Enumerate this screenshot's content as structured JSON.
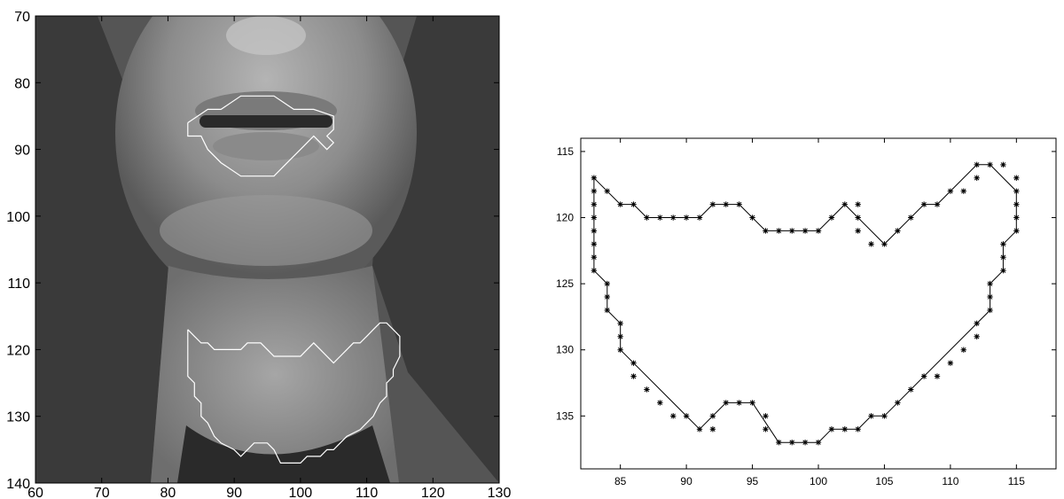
{
  "chart_data": [
    {
      "type": "image",
      "title": "",
      "xlabel": "",
      "ylabel": "",
      "xlim": [
        60,
        130
      ],
      "ylim": [
        70,
        140
      ],
      "y_reversed": true,
      "xticks": [
        60,
        70,
        80,
        90,
        100,
        110,
        120,
        130
      ],
      "yticks": [
        70,
        80,
        90,
        100,
        110,
        120,
        130,
        140
      ],
      "image_content": "grayscale face crop (mouth and neck) with white contour overlays",
      "overlay_color": "#ffffff",
      "contours": [
        {
          "region": "mouth",
          "points": [
            [
              83,
              86
            ],
            [
              86,
              84
            ],
            [
              88,
              84
            ],
            [
              91,
              82
            ],
            [
              96,
              82
            ],
            [
              99,
              84
            ],
            [
              102,
              84
            ],
            [
              105,
              85
            ],
            [
              105,
              87
            ],
            [
              104,
              88
            ],
            [
              105,
              89
            ],
            [
              104,
              90
            ],
            [
              102,
              88
            ],
            [
              100,
              90
            ],
            [
              98,
              92
            ],
            [
              96,
              94
            ],
            [
              91,
              94
            ],
            [
              88,
              92
            ],
            [
              86,
              90
            ],
            [
              85,
              88
            ],
            [
              83,
              88
            ],
            [
              83,
              86
            ]
          ]
        },
        {
          "region": "neck",
          "points": [
            [
              83,
              117
            ],
            [
              84,
              118
            ],
            [
              85,
              119
            ],
            [
              86,
              119
            ],
            [
              87,
              120
            ],
            [
              90,
              120
            ],
            [
              91,
              120
            ],
            [
              92,
              119
            ],
            [
              94,
              119
            ],
            [
              95,
              120
            ],
            [
              96,
              121
            ],
            [
              100,
              121
            ],
            [
              101,
              120
            ],
            [
              102,
              119
            ],
            [
              103,
              120
            ],
            [
              105,
              122
            ],
            [
              106,
              121
            ],
            [
              107,
              120
            ],
            [
              108,
              119
            ],
            [
              109,
              119
            ],
            [
              110,
              118
            ],
            [
              111,
              117
            ],
            [
              112,
              116
            ],
            [
              113,
              116
            ],
            [
              114,
              117
            ],
            [
              115,
              118
            ],
            [
              115,
              121
            ],
            [
              114,
              123
            ],
            [
              114,
              124
            ],
            [
              113,
              125
            ],
            [
              113,
              127
            ],
            [
              112,
              128
            ],
            [
              111,
              130
            ],
            [
              110,
              131
            ],
            [
              109,
              132
            ],
            [
              107,
              133
            ],
            [
              106,
              134
            ],
            [
              105,
              135
            ],
            [
              104,
              135
            ],
            [
              103,
              136
            ],
            [
              101,
              136
            ],
            [
              100,
              137
            ],
            [
              97,
              137
            ],
            [
              96,
              135
            ],
            [
              95,
              134
            ],
            [
              94,
              134
            ],
            [
              93,
              134
            ],
            [
              92,
              135
            ],
            [
              91,
              136
            ],
            [
              90,
              135
            ],
            [
              88,
              134
            ],
            [
              87,
              133
            ],
            [
              86,
              131
            ],
            [
              85,
              130
            ],
            [
              85,
              128
            ],
            [
              84,
              127
            ],
            [
              84,
              125
            ],
            [
              83,
              124
            ],
            [
              83,
              117
            ]
          ]
        }
      ]
    },
    {
      "type": "scatter",
      "title": "",
      "xlabel": "",
      "ylabel": "",
      "xlim": [
        82,
        118
      ],
      "ylim": [
        114,
        139
      ],
      "y_reversed": true,
      "xticks": [
        85,
        90,
        95,
        100,
        105,
        110,
        115
      ],
      "yticks": [
        115,
        120,
        125,
        130,
        135
      ],
      "line_color": "#000000",
      "marker": "*",
      "series": [
        {
          "points": [
            [
              83,
              117
            ],
            [
              83,
              118
            ],
            [
              83,
              119
            ],
            [
              83,
              120
            ],
            [
              83,
              121
            ],
            [
              83,
              122
            ],
            [
              83,
              123
            ],
            [
              83,
              124
            ],
            [
              84,
              118
            ],
            [
              85,
              119
            ],
            [
              86,
              119
            ],
            [
              87,
              120
            ],
            [
              88,
              120
            ],
            [
              89,
              120
            ],
            [
              90,
              120
            ],
            [
              91,
              120
            ],
            [
              92,
              119
            ],
            [
              93,
              119
            ],
            [
              94,
              119
            ],
            [
              95,
              120
            ],
            [
              96,
              121
            ],
            [
              97,
              121
            ],
            [
              98,
              121
            ],
            [
              99,
              121
            ],
            [
              100,
              121
            ],
            [
              101,
              120
            ],
            [
              102,
              119
            ],
            [
              103,
              119
            ],
            [
              103,
              120
            ],
            [
              103,
              121
            ],
            [
              104,
              122
            ],
            [
              105,
              122
            ],
            [
              106,
              121
            ],
            [
              107,
              120
            ],
            [
              108,
              119
            ],
            [
              109,
              119
            ],
            [
              110,
              118
            ],
            [
              111,
              118
            ],
            [
              112,
              117
            ],
            [
              112,
              116
            ],
            [
              113,
              116
            ],
            [
              114,
              116
            ],
            [
              115,
              117
            ],
            [
              115,
              118
            ],
            [
              115,
              119
            ],
            [
              115,
              120
            ],
            [
              115,
              121
            ],
            [
              114,
              122
            ],
            [
              114,
              123
            ],
            [
              114,
              124
            ],
            [
              113,
              125
            ],
            [
              113,
              126
            ],
            [
              113,
              127
            ],
            [
              112,
              128
            ],
            [
              112,
              129
            ],
            [
              111,
              130
            ],
            [
              110,
              131
            ],
            [
              109,
              132
            ],
            [
              108,
              132
            ],
            [
              107,
              133
            ],
            [
              106,
              134
            ],
            [
              105,
              135
            ],
            [
              104,
              135
            ],
            [
              103,
              136
            ],
            [
              102,
              136
            ],
            [
              101,
              136
            ],
            [
              100,
              137
            ],
            [
              99,
              137
            ],
            [
              98,
              137
            ],
            [
              97,
              137
            ],
            [
              96,
              136
            ],
            [
              96,
              135
            ],
            [
              95,
              134
            ],
            [
              94,
              134
            ],
            [
              93,
              134
            ],
            [
              92,
              135
            ],
            [
              92,
              136
            ],
            [
              91,
              136
            ],
            [
              90,
              135
            ],
            [
              89,
              135
            ],
            [
              88,
              134
            ],
            [
              87,
              133
            ],
            [
              86,
              132
            ],
            [
              86,
              131
            ],
            [
              85,
              130
            ],
            [
              85,
              129
            ],
            [
              85,
              128
            ],
            [
              84,
              127
            ],
            [
              84,
              126
            ],
            [
              84,
              125
            ]
          ]
        }
      ],
      "outline": [
        [
          83,
          117
        ],
        [
          83,
          124
        ],
        [
          84,
          125
        ],
        [
          84,
          127
        ],
        [
          85,
          128
        ],
        [
          85,
          130
        ],
        [
          91,
          136
        ],
        [
          93,
          134
        ],
        [
          95,
          134
        ],
        [
          97,
          137
        ],
        [
          100,
          137
        ],
        [
          101,
          136
        ],
        [
          103,
          136
        ],
        [
          104,
          135
        ],
        [
          105,
          135
        ],
        [
          113,
          127
        ],
        [
          113,
          125
        ],
        [
          114,
          124
        ],
        [
          114,
          122
        ],
        [
          115,
          121
        ],
        [
          115,
          118
        ],
        [
          113,
          116
        ],
        [
          112,
          116
        ],
        [
          109,
          119
        ],
        [
          108,
          119
        ],
        [
          105,
          122
        ],
        [
          102,
          119
        ],
        [
          100,
          121
        ],
        [
          96,
          121
        ],
        [
          94,
          119
        ],
        [
          92,
          119
        ],
        [
          91,
          120
        ],
        [
          87,
          120
        ],
        [
          86,
          119
        ],
        [
          85,
          119
        ],
        [
          83,
          117
        ]
      ]
    }
  ]
}
